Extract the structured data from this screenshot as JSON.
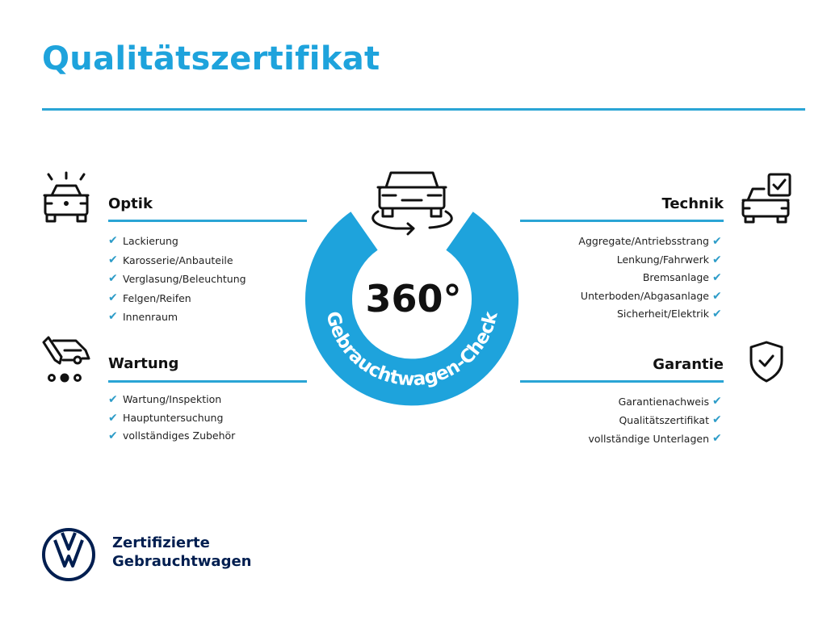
{
  "title": "Qualitätszertifikat",
  "colors": {
    "accent": "#1ea3dc",
    "rule": "#2aa5d5",
    "check": "#2d9cc8",
    "brand_navy": "#001e50"
  },
  "center": {
    "big": "360°",
    "ring_text": "Gebrauchtwagen-Check",
    "icon": "car-rotate-icon"
  },
  "sections": {
    "optik": {
      "heading": "Optik",
      "icon": "car-lights-icon",
      "items": [
        "Lackierung",
        "Karosserie/Anbauteile",
        "Verglasung/Beleuchtung",
        "Felgen/Reifen",
        "Innenraum"
      ]
    },
    "wartung": {
      "heading": "Wartung",
      "icon": "service-van-icon",
      "items": [
        "Wartung/Inspektion",
        "Hauptuntersuchung",
        "vollständiges Zubehör"
      ]
    },
    "technik": {
      "heading": "Technik",
      "icon": "car-checklist-icon",
      "items": [
        "Aggregate/Antriebsstrang",
        "Lenkung/Fahrwerk",
        "Bremsanlage",
        "Unterboden/Abgasanlage",
        "Sicherheit/Elektrik"
      ]
    },
    "garantie": {
      "heading": "Garantie",
      "icon": "shield-check-icon",
      "items": [
        "Garantienachweis",
        "Qualitätszertifikat",
        "vollständige Unterlagen"
      ]
    }
  },
  "footer": {
    "line1": "Zertifizierte",
    "line2": "Gebrauchtwagen",
    "logo": "vw-logo"
  },
  "check_glyph": "✔"
}
